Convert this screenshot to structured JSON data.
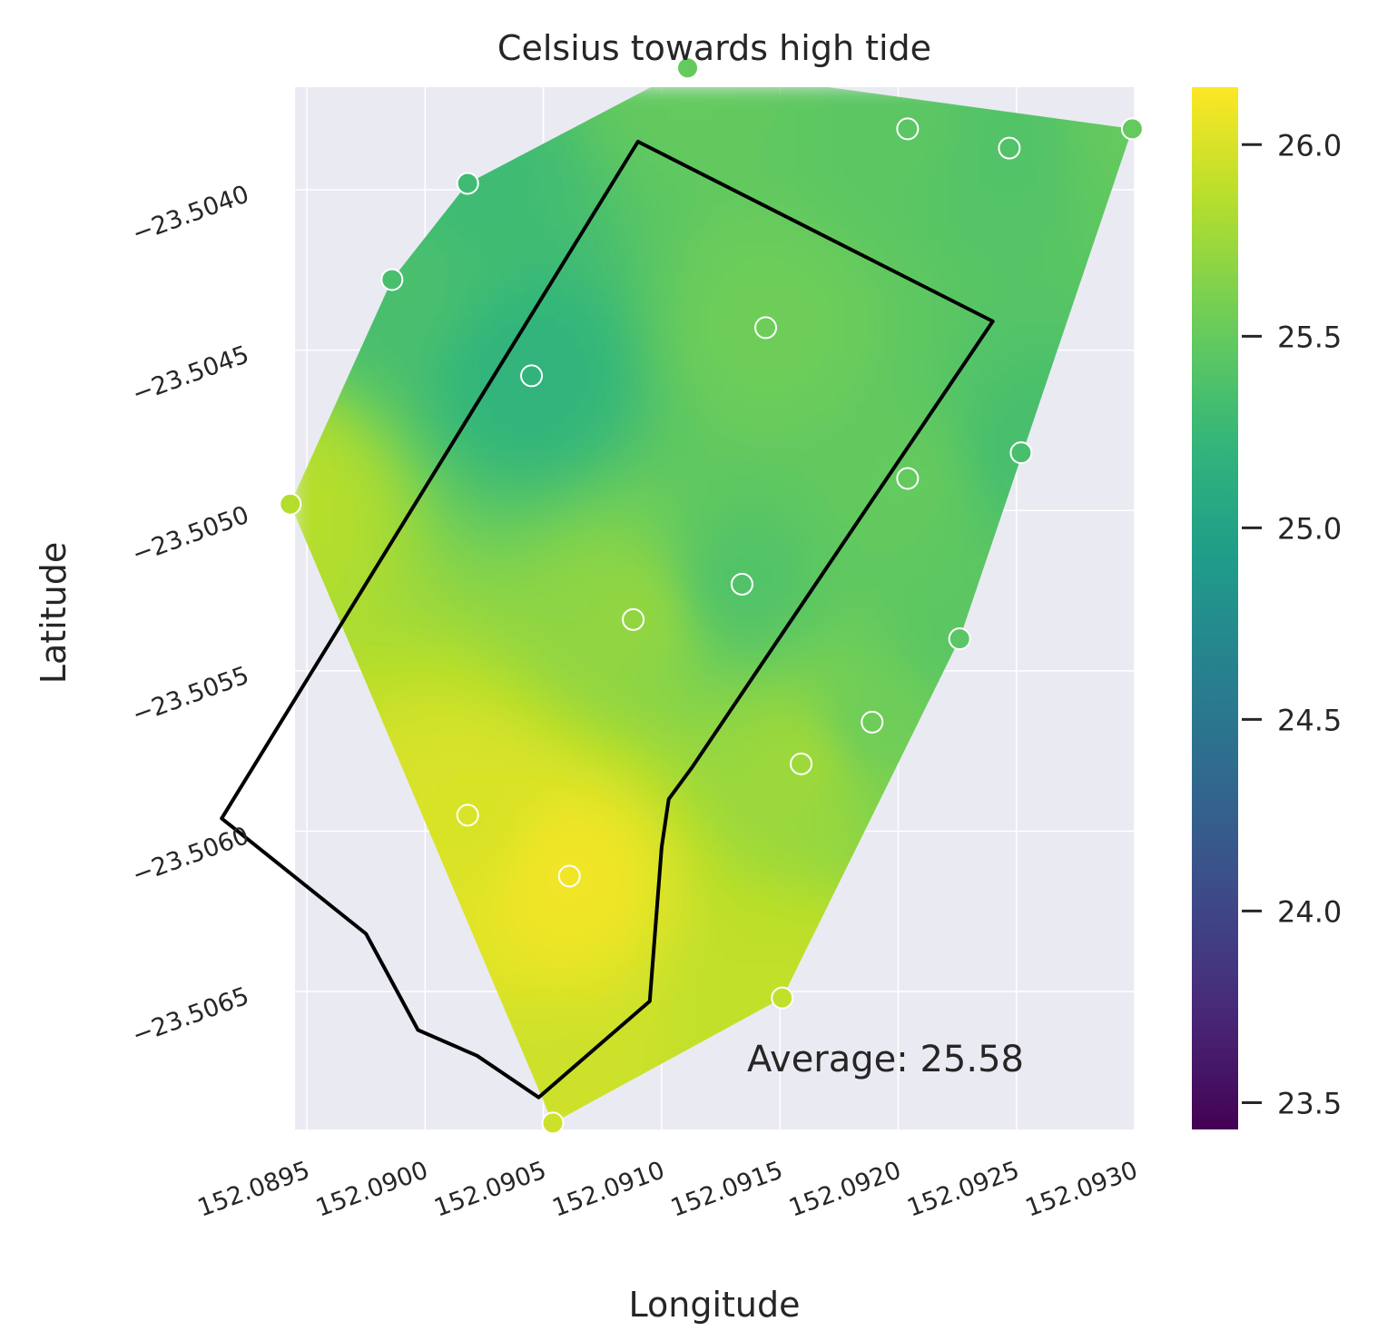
{
  "chart_data": {
    "type": "heatmap",
    "title": "Celsius towards high tide",
    "xlabel": "Longitude",
    "ylabel": "Latitude",
    "xlim": [
      152.08945,
      152.093
    ],
    "ylim": [
      -23.50693,
      -23.50368
    ],
    "x_ticks": [
      152.0895,
      152.09,
      152.0905,
      152.091,
      152.0915,
      152.092,
      152.0925,
      152.093
    ],
    "x_tick_labels": [
      "152.0895",
      "152.0900",
      "152.0905",
      "152.0910",
      "152.0915",
      "152.0920",
      "152.0925",
      "152.0930"
    ],
    "y_ticks": [
      -23.504,
      -23.5045,
      -23.505,
      -23.5055,
      -23.506,
      -23.5065
    ],
    "y_tick_labels": [
      "−23.5040",
      "−23.5045",
      "−23.5050",
      "−23.5055",
      "−23.5060",
      "−23.5065"
    ],
    "grid": true,
    "colormap": "viridis",
    "colorbar": {
      "range": [
        23.43,
        26.15
      ],
      "ticks": [
        23.5,
        24.0,
        24.5,
        25.0,
        25.5,
        26.0
      ],
      "tick_labels": [
        "23.5",
        "24.0",
        "24.5",
        "25.0",
        "25.5",
        "26.0"
      ]
    },
    "points": [
      {
        "x": 152.09111,
        "y": -23.50362,
        "value": 25.5
      },
      {
        "x": 152.09018,
        "y": -23.50398,
        "value": 25.3
      },
      {
        "x": 152.08986,
        "y": -23.50428,
        "value": 25.35
      },
      {
        "x": 152.09045,
        "y": -23.50458,
        "value": 25.2
      },
      {
        "x": 152.09204,
        "y": -23.50381,
        "value": 25.45
      },
      {
        "x": 152.09247,
        "y": -23.50387,
        "value": 25.4
      },
      {
        "x": 152.09299,
        "y": -23.50381,
        "value": 25.5
      },
      {
        "x": 152.09144,
        "y": -23.50443,
        "value": 25.55
      },
      {
        "x": 152.09252,
        "y": -23.50482,
        "value": 25.35
      },
      {
        "x": 152.09204,
        "y": -23.5049,
        "value": 25.5
      },
      {
        "x": 152.08943,
        "y": -23.50498,
        "value": 25.85
      },
      {
        "x": 152.09134,
        "y": -23.50523,
        "value": 25.4
      },
      {
        "x": 152.09088,
        "y": -23.50534,
        "value": 25.7
      },
      {
        "x": 152.09226,
        "y": -23.5054,
        "value": 25.45
      },
      {
        "x": 152.09189,
        "y": -23.50566,
        "value": 25.55
      },
      {
        "x": 152.09159,
        "y": -23.50579,
        "value": 25.75
      },
      {
        "x": 152.09018,
        "y": -23.50595,
        "value": 26.0
      },
      {
        "x": 152.09061,
        "y": -23.50614,
        "value": 26.1
      },
      {
        "x": 152.09151,
        "y": -23.50652,
        "value": 25.9
      },
      {
        "x": 152.09054,
        "y": -23.50691,
        "value": 25.95
      }
    ],
    "boundary": [
      [
        152.0909,
        -23.50385
      ],
      [
        152.0924,
        -23.50441
      ],
      [
        152.09113,
        -23.5058
      ],
      [
        152.09103,
        -23.5059
      ],
      [
        152.091,
        -23.50605
      ],
      [
        152.09095,
        -23.50653
      ],
      [
        152.09048,
        -23.50683
      ],
      [
        152.09022,
        -23.5067
      ],
      [
        152.08997,
        -23.50662
      ],
      [
        152.08975,
        -23.50632
      ],
      [
        152.08914,
        -23.50596
      ]
    ],
    "annotation": "Average: 25.58"
  }
}
